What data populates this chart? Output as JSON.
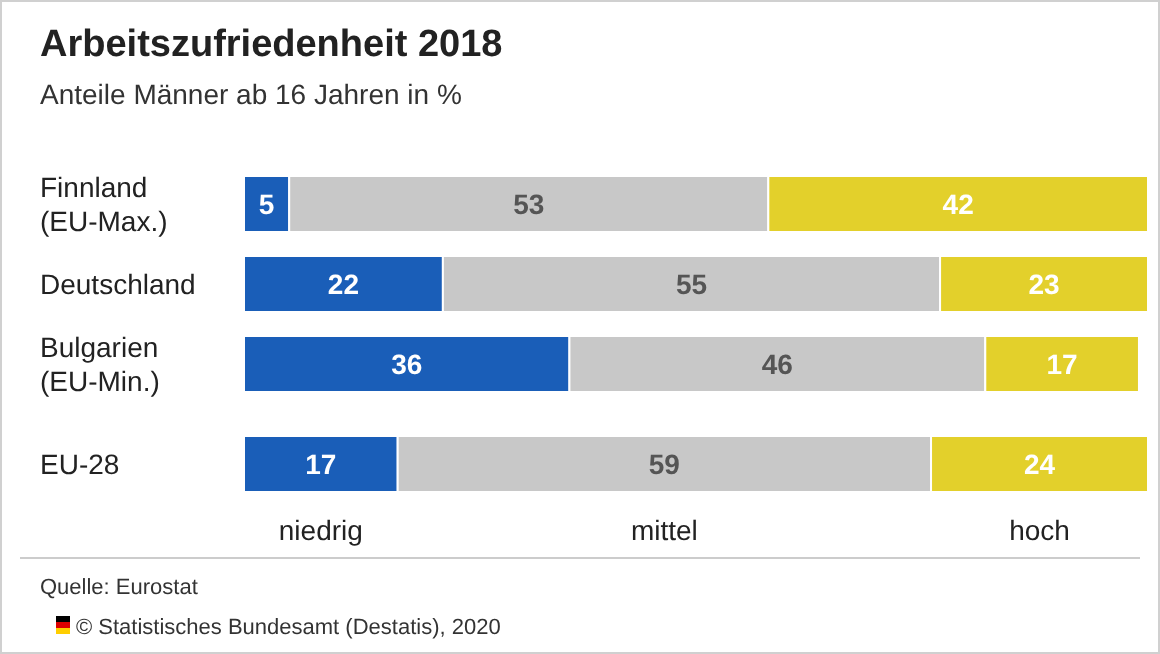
{
  "chart_data": {
    "type": "bar",
    "orientation": "horizontal",
    "stacked": true,
    "data_labels": true,
    "legend": "bottom",
    "title": "Arbeitszufriedenheit 2018",
    "subtitle": "Anteile Männer ab 16 Jahren in %",
    "categories": [
      "Finnland\n(EU-Max.)",
      "Deutschland",
      "Bulgarien\n(EU-Min.)",
      "EU-28"
    ],
    "series": [
      {
        "name": "niedrig",
        "color": "#1a5eb8",
        "values": [
          5,
          22,
          36,
          17
        ]
      },
      {
        "name": "mittel",
        "color": "#c8c8c8",
        "values": [
          53,
          55,
          46,
          59
        ]
      },
      {
        "name": "hoch",
        "color": "#e3d02b",
        "values": [
          42,
          23,
          17,
          24
        ]
      }
    ],
    "annotations": [
      "Quelle: Eurostat",
      "© Statistisches Bundesamt (Destatis), 2020"
    ]
  }
}
